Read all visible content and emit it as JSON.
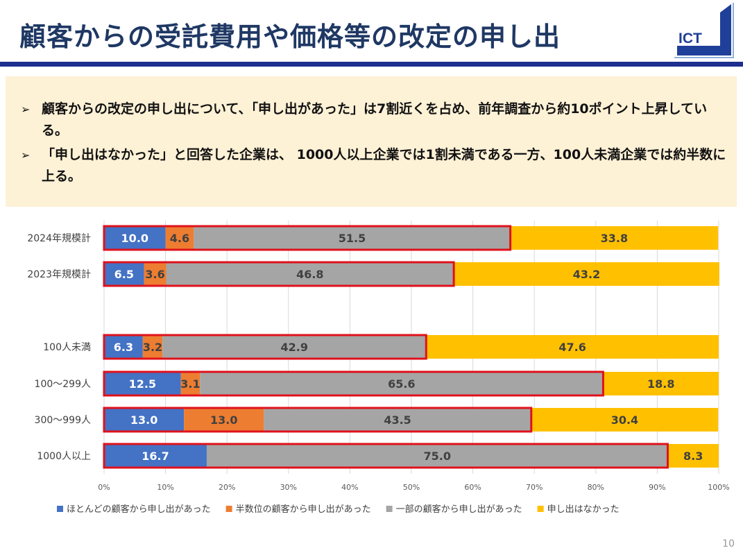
{
  "header": {
    "title": "顧客からの受託費用や価格等の改定の申し出",
    "logo_text": "ICT"
  },
  "summary": {
    "bullets": [
      "顧客からの改定の申し出について、「申し出があった」は7割近くを占め、前年調査から約10ポイント上昇している。",
      "「申し出はなかった」と回答した企業は、 1000人以上企業では1割未満である一方、100人未満企業では約半数に上る。"
    ],
    "marker": "➢"
  },
  "colors": {
    "title": "#1f3864",
    "accent_bar": "#1f2f8f",
    "highlight_box": "#e0111b",
    "summary_bg": "#fdf1d6"
  },
  "chart_data": {
    "type": "bar",
    "orientation": "horizontal-stacked-100",
    "categories": [
      "2024年規模計",
      "2023年規模計",
      "100人未満",
      "100～299人",
      "300～999人",
      "1000人以上"
    ],
    "series": [
      {
        "name": "ほとんどの顧客から申し出があった",
        "color": "#4472c4",
        "values": [
          10.0,
          6.5,
          6.3,
          12.5,
          13.0,
          16.7
        ]
      },
      {
        "name": "半数位の顧客から申し出があった",
        "color": "#ed7d31",
        "values": [
          4.6,
          3.6,
          3.2,
          3.1,
          13.0,
          0
        ]
      },
      {
        "name": "一部の顧客から申し出があった",
        "color": "#a5a5a5",
        "values": [
          51.5,
          46.8,
          42.9,
          65.6,
          43.5,
          75.0
        ]
      },
      {
        "name": "申し出はなかった",
        "color": "#ffc000",
        "values": [
          33.8,
          43.2,
          47.6,
          18.8,
          30.4,
          8.3
        ]
      }
    ],
    "data_labels": [
      [
        "10.0",
        "4.6",
        "51.5",
        "33.8"
      ],
      [
        "6.5",
        "3.6",
        "46.8",
        "43.2"
      ],
      [
        "6.3",
        "3.2",
        "42.9",
        "47.6"
      ],
      [
        "12.5",
        "3.1",
        "65.6",
        "18.8"
      ],
      [
        "13.0",
        "13.0",
        "43.5",
        "30.4"
      ],
      [
        "16.7",
        "•••",
        "75.0",
        "8.3"
      ]
    ],
    "xlim": [
      0,
      100
    ],
    "xticks": [
      "0%",
      "10%",
      "20%",
      "30%",
      "40%",
      "50%",
      "60%",
      "70%",
      "80%",
      "90%",
      "100%"
    ],
    "grid": true,
    "legend": "bottom",
    "highlight": "first three segments outlined in red"
  },
  "footer": {
    "page_number": "10"
  }
}
